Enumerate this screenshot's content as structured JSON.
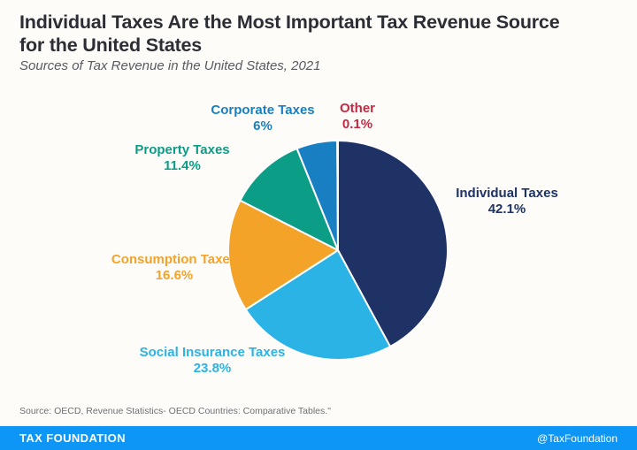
{
  "header": {
    "title": "Individual Taxes Are the Most Important Tax Revenue Source for the United States",
    "subtitle": "Sources of Tax Revenue in the United States, 2021"
  },
  "chart_data": {
    "type": "pie",
    "title": "Sources of Tax Revenue in the United States, 2021",
    "unit": "percent",
    "start_angle_deg": 0,
    "direction": "clockwise",
    "slices": [
      {
        "label": "Individual Taxes",
        "value": 42.1,
        "display": "42.1%",
        "color": "#1f3266"
      },
      {
        "label": "Social Insurance Taxes",
        "value": 23.8,
        "display": "23.8%",
        "color": "#2cb3e6"
      },
      {
        "label": "Consumption Taxes",
        "value": 16.6,
        "display": "16.6%",
        "color": "#f4a329"
      },
      {
        "label": "Property Taxes",
        "value": 11.4,
        "display": "11.4%",
        "color": "#0b9d86"
      },
      {
        "label": "Corporate Taxes",
        "value": 6,
        "display": "6%",
        "color": "#187fc3"
      },
      {
        "label": "Other",
        "value": 0.1,
        "display": "0.1%",
        "color": "#c32a42"
      }
    ]
  },
  "source_note": "Source: OECD, Revenue Statistics- OECD Countries: Comparative Tables.\"",
  "footer": {
    "brand": "TAX FOUNDATION",
    "handle": "@TaxFoundation",
    "bar_color": "#0e96f6"
  }
}
